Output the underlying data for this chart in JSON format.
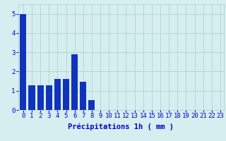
{
  "categories": [
    0,
    1,
    2,
    3,
    4,
    5,
    6,
    7,
    8,
    9,
    10,
    11,
    12,
    13,
    14,
    15,
    16,
    17,
    18,
    19,
    20,
    21,
    22,
    23
  ],
  "values": [
    5.0,
    1.3,
    1.3,
    1.3,
    1.6,
    1.6,
    2.9,
    1.45,
    0.5,
    0,
    0,
    0,
    0,
    0,
    0,
    0,
    0,
    0,
    0,
    0,
    0,
    0,
    0,
    0
  ],
  "bar_color": "#1133bb",
  "background_color": "#d6eef0",
  "grid_color": "#aacccc",
  "xlabel": "Précipitations 1h ( mm )",
  "ylim": [
    0,
    5.5
  ],
  "yticks": [
    0,
    1,
    2,
    3,
    4,
    5
  ],
  "xlabel_fontsize": 7.5,
  "tick_fontsize": 6.5,
  "tick_color": "#0000cc",
  "label_color": "#0000cc"
}
